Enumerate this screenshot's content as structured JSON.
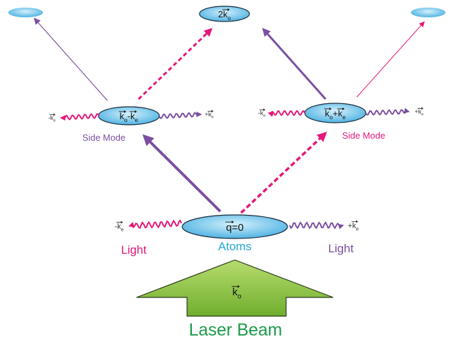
{
  "top_node": {
    "label": [
      {
        "text": "2"
      },
      {
        "text": "k",
        "vec": true,
        "sub": "o"
      }
    ]
  },
  "left_mode": {
    "label": [
      {
        "text": "k",
        "vec": true,
        "sub": "o"
      },
      {
        "text": "-"
      },
      {
        "text": "k",
        "vec": true,
        "sub": "e"
      }
    ],
    "caption": "Side Mode",
    "left_light": [
      {
        "text": "-"
      },
      {
        "text": "k",
        "vec": true,
        "sub": "e"
      }
    ],
    "right_light": [
      {
        "text": "+"
      },
      {
        "text": "k",
        "vec": true,
        "sub": "e"
      }
    ]
  },
  "right_mode": {
    "label": [
      {
        "text": "k",
        "vec": true,
        "sub": "o"
      },
      {
        "text": "+"
      },
      {
        "text": "k",
        "vec": true,
        "sub": "e"
      }
    ],
    "caption": "Side Mode",
    "left_light": [
      {
        "text": "-"
      },
      {
        "text": "k",
        "vec": true,
        "sub": "e"
      }
    ],
    "right_light": [
      {
        "text": "+"
      },
      {
        "text": "k",
        "vec": true,
        "sub": "e"
      }
    ]
  },
  "atoms": {
    "label": [
      {
        "text": "q",
        "vec": true
      },
      {
        "text": "=0"
      }
    ],
    "caption": "Atoms",
    "left_light": [
      {
        "text": "-"
      },
      {
        "text": "k",
        "vec": true,
        "sub": "e"
      }
    ],
    "right_light": [
      {
        "text": "+"
      },
      {
        "text": "k",
        "vec": true,
        "sub": "e"
      }
    ],
    "left_caption": "Light",
    "right_caption": "Light"
  },
  "laser": {
    "label": [
      {
        "text": "k",
        "vec": true,
        "sub": "o"
      }
    ],
    "caption": "Laser Beam"
  }
}
